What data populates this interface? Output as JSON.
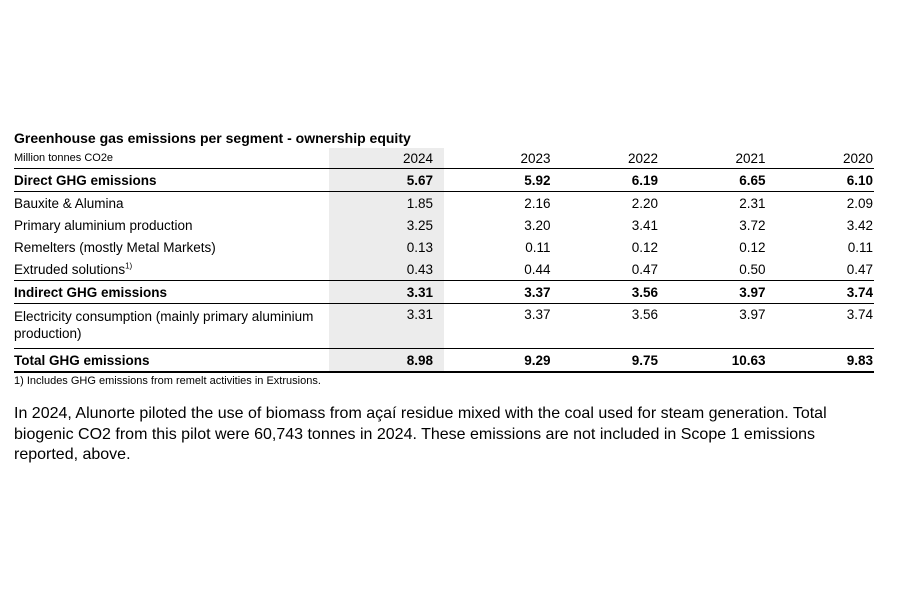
{
  "table": {
    "title": "Greenhouse gas emissions per segment - ownership equity",
    "unit_label": "Million tonnes CO2e",
    "years": [
      "2024",
      "2023",
      "2022",
      "2021",
      "2020"
    ],
    "rows": [
      {
        "label": "Direct GHG emissions",
        "sup": "",
        "values": [
          "5.67",
          "5.92",
          "6.19",
          "6.65",
          "6.10"
        ]
      },
      {
        "label": "Bauxite & Alumina",
        "sup": "",
        "values": [
          "1.85",
          "2.16",
          "2.20",
          "2.31",
          "2.09"
        ]
      },
      {
        "label": "Primary aluminium production",
        "sup": "",
        "values": [
          "3.25",
          "3.20",
          "3.41",
          "3.72",
          "3.42"
        ]
      },
      {
        "label": "Remelters (mostly Metal Markets)",
        "sup": "",
        "values": [
          "0.13",
          "0.11",
          "0.12",
          "0.12",
          "0.11"
        ]
      },
      {
        "label": "Extruded solutions",
        "sup": "1)",
        "values": [
          "0.43",
          "0.44",
          "0.47",
          "0.50",
          "0.47"
        ]
      },
      {
        "label": "Indirect GHG emissions",
        "sup": "",
        "values": [
          "3.31",
          "3.37",
          "3.56",
          "3.97",
          "3.74"
        ]
      },
      {
        "label": "Electricity consumption (mainly primary aluminium production)",
        "sup": "",
        "values": [
          "3.31",
          "3.37",
          "3.56",
          "3.97",
          "3.74"
        ]
      },
      {
        "label": "Total GHG emissions",
        "sup": "",
        "values": [
          "8.98",
          "9.29",
          "9.75",
          "10.63",
          "9.83"
        ]
      }
    ],
    "footnote": "1) Includes GHG emissions from remelt activities in Extrusions."
  },
  "paragraph": "In 2024, Alunorte piloted the use of biomass from açaí residue mixed with the coal used for steam generation. Total biogenic CO2 from this pilot were 60,743 tonnes in 2024. These emissions are not included in Scope 1 emissions reported, above."
}
